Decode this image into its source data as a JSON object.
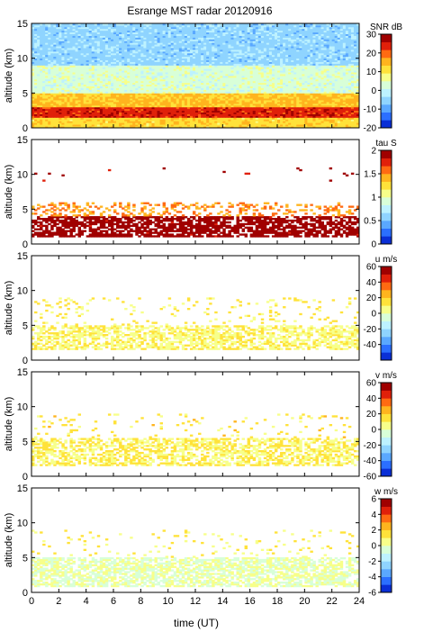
{
  "title": "Esrange MST radar 20120916",
  "xlabel": "time (UT)",
  "colors": {
    "cmap": [
      "#0a2fd6",
      "#2b6fff",
      "#5aa8ff",
      "#8fd4ff",
      "#bdf2ff",
      "#d8ffd8",
      "#f7ff8a",
      "#ffe23a",
      "#ffb41e",
      "#ff6a12",
      "#e0200a",
      "#a00000"
    ]
  },
  "chart_data": [
    {
      "type": "heatmap",
      "name": "snr",
      "ylabel": "altitude (km)",
      "ylim": [
        0,
        15
      ],
      "yticks": [
        0,
        5,
        10,
        15
      ],
      "xlim": [
        0,
        24
      ],
      "xticks": [
        0,
        2,
        4,
        6,
        8,
        10,
        12,
        14,
        16,
        18,
        20,
        22,
        24
      ],
      "colorbar": {
        "label": "SNR dB",
        "range": [
          -20,
          30
        ],
        "ticks": [
          -20,
          -10,
          0,
          10,
          20,
          30
        ]
      },
      "layers": [
        {
          "alt": [
            0,
            1.5
          ],
          "value": 12,
          "coverage": 1.0
        },
        {
          "alt": [
            1.5,
            3
          ],
          "value": 24,
          "coverage": 1.0
        },
        {
          "alt": [
            3,
            5
          ],
          "value": 14,
          "coverage": 1.0
        },
        {
          "alt": [
            5,
            9
          ],
          "value": 3,
          "coverage": 1.0
        },
        {
          "alt": [
            9,
            15
          ],
          "value": -5,
          "coverage": 1.0
        }
      ]
    },
    {
      "type": "heatmap",
      "name": "tau",
      "ylabel": "altitude (km)",
      "ylim": [
        0,
        15
      ],
      "yticks": [
        0,
        5,
        10,
        15
      ],
      "xlim": [
        0,
        24
      ],
      "xticks": [
        0,
        2,
        4,
        6,
        8,
        10,
        12,
        14,
        16,
        18,
        20,
        22,
        24
      ],
      "colorbar": {
        "label": "tau S",
        "range": [
          0,
          2
        ],
        "ticks": [
          0,
          0.5,
          1,
          1.5,
          2
        ]
      },
      "layers": [
        {
          "alt": [
            1,
            4
          ],
          "value": 1.95,
          "coverage": 0.7
        },
        {
          "alt": [
            4,
            6
          ],
          "value": 1.5,
          "coverage": 0.3
        },
        {
          "alt": [
            9,
            11
          ],
          "value": 1.9,
          "coverage": 0.02
        }
      ]
    },
    {
      "type": "heatmap",
      "name": "u",
      "ylabel": "altitude (km)",
      "ylim": [
        0,
        15
      ],
      "yticks": [
        0,
        5,
        10,
        15
      ],
      "xlim": [
        0,
        24
      ],
      "xticks": [
        0,
        2,
        4,
        6,
        8,
        10,
        12,
        14,
        16,
        18,
        20,
        22,
        24
      ],
      "colorbar": {
        "label": "u m/s",
        "range": [
          -60,
          60
        ],
        "ticks": [
          -40,
          -20,
          0,
          20,
          40,
          60
        ]
      },
      "layers": [
        {
          "alt": [
            1.5,
            5
          ],
          "value": 8,
          "coverage": 0.6
        },
        {
          "alt": [
            5,
            9
          ],
          "value": 12,
          "coverage": 0.08
        }
      ]
    },
    {
      "type": "heatmap",
      "name": "v",
      "ylabel": "altitude (km)",
      "ylim": [
        0,
        15
      ],
      "yticks": [
        0,
        5,
        10,
        15
      ],
      "xlim": [
        0,
        24
      ],
      "xticks": [
        0,
        2,
        4,
        6,
        8,
        10,
        12,
        14,
        16,
        18,
        20,
        22,
        24
      ],
      "colorbar": {
        "label": "v m/s",
        "range": [
          -60,
          60
        ],
        "ticks": [
          -60,
          -40,
          -20,
          0,
          20,
          40,
          60
        ]
      },
      "layers": [
        {
          "alt": [
            1.5,
            5.5
          ],
          "value": 10,
          "coverage": 0.6
        },
        {
          "alt": [
            5.5,
            9
          ],
          "value": 14,
          "coverage": 0.06
        }
      ]
    },
    {
      "type": "heatmap",
      "name": "w",
      "ylabel": "altitude (km)",
      "ylim": [
        0,
        15
      ],
      "yticks": [
        0,
        5,
        10,
        15
      ],
      "xlim": [
        0,
        24
      ],
      "xticks": [
        0,
        2,
        4,
        6,
        8,
        10,
        12,
        14,
        16,
        18,
        20,
        22,
        24
      ],
      "colorbar": {
        "label": "w m/s",
        "range": [
          -6,
          6
        ],
        "ticks": [
          -6,
          -4,
          -2,
          0,
          2,
          4,
          6
        ]
      },
      "layers": [
        {
          "alt": [
            0.8,
            5
          ],
          "value": 0,
          "coverage": 0.7
        },
        {
          "alt": [
            5,
            9
          ],
          "value": 1,
          "coverage": 0.05
        }
      ]
    }
  ]
}
